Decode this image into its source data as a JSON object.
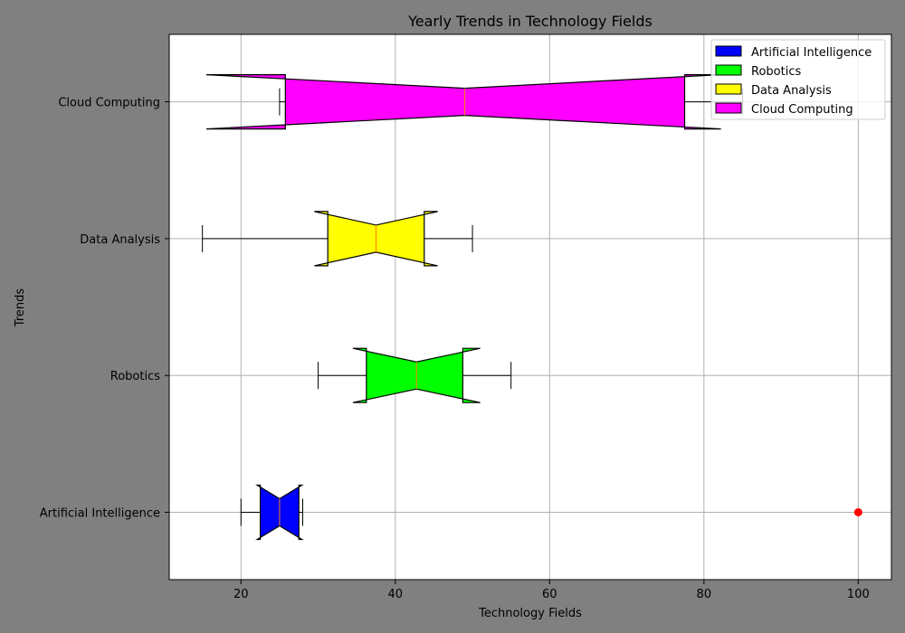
{
  "chart_data": {
    "type": "boxplot",
    "orientation": "horizontal",
    "notched": true,
    "title": "Yearly Trends in Technology Fields",
    "xlabel": "Technology Fields",
    "ylabel": "Trends",
    "xlim": [
      10.7,
      104.3
    ],
    "xticks": [
      20,
      40,
      60,
      80,
      100
    ],
    "grid": true,
    "legend_position": "top-right",
    "series": [
      {
        "name": "Artificial Intelligence",
        "color": "#0000ff",
        "whisker_low": 20,
        "q1": 22.5,
        "median": 25,
        "q3": 27.5,
        "whisker_high": 28,
        "notch_low": 22.1,
        "notch_high": 27.9,
        "outliers": [
          100
        ],
        "outlier_color": "#ff0000"
      },
      {
        "name": "Robotics",
        "color": "#00ff00",
        "whisker_low": 30,
        "q1": 36.25,
        "median": 42.75,
        "q3": 48.75,
        "whisker_high": 55,
        "notch_low": 34.5,
        "notch_high": 51,
        "outliers": []
      },
      {
        "name": "Data Analysis",
        "color": "#ffff00",
        "whisker_low": 15,
        "q1": 31.25,
        "median": 37.5,
        "q3": 43.75,
        "whisker_high": 50,
        "notch_low": 29.5,
        "notch_high": 45.5,
        "outliers": []
      },
      {
        "name": "Cloud Computing",
        "color": "#ff00ff",
        "whisker_low": 25,
        "q1": 25.75,
        "median": 49,
        "q3": 77.5,
        "whisker_high": 85,
        "notch_low": 15.5,
        "notch_high": 82.2,
        "outliers": []
      }
    ]
  }
}
